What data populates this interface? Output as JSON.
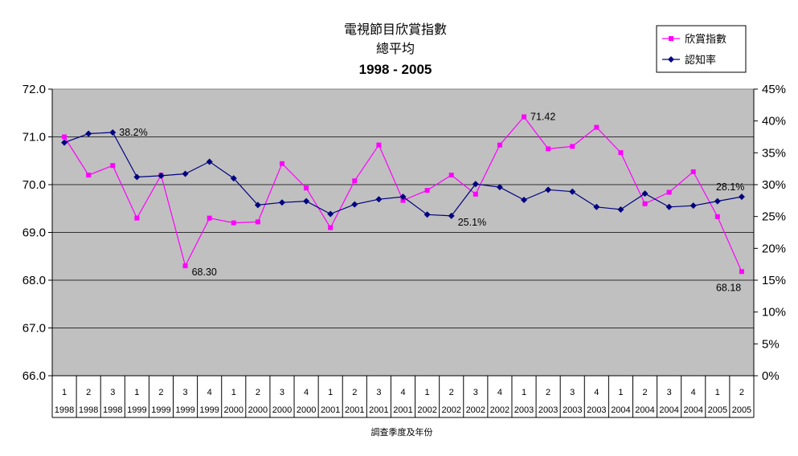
{
  "chart_data": {
    "type": "line",
    "title": [
      "電視節目欣賞指數",
      "總平均",
      "1998 - 2005"
    ],
    "xlabel": "調查季度及年份",
    "categories": [
      {
        "q": "1",
        "y": "1998"
      },
      {
        "q": "2",
        "y": "1998"
      },
      {
        "q": "3",
        "y": "1998"
      },
      {
        "q": "1",
        "y": "1999"
      },
      {
        "q": "2",
        "y": "1999"
      },
      {
        "q": "3",
        "y": "1999"
      },
      {
        "q": "4",
        "y": "1999"
      },
      {
        "q": "1",
        "y": "2000"
      },
      {
        "q": "2",
        "y": "2000"
      },
      {
        "q": "3",
        "y": "2000"
      },
      {
        "q": "4",
        "y": "2000"
      },
      {
        "q": "1",
        "y": "2001"
      },
      {
        "q": "2",
        "y": "2001"
      },
      {
        "q": "3",
        "y": "2001"
      },
      {
        "q": "4",
        "y": "2001"
      },
      {
        "q": "1",
        "y": "2002"
      },
      {
        "q": "2",
        "y": "2002"
      },
      {
        "q": "3",
        "y": "2002"
      },
      {
        "q": "4",
        "y": "2002"
      },
      {
        "q": "1",
        "y": "2003"
      },
      {
        "q": "2",
        "y": "2003"
      },
      {
        "q": "3",
        "y": "2003"
      },
      {
        "q": "4",
        "y": "2003"
      },
      {
        "q": "1",
        "y": "2004"
      },
      {
        "q": "2",
        "y": "2004"
      },
      {
        "q": "3",
        "y": "2004"
      },
      {
        "q": "4",
        "y": "2004"
      },
      {
        "q": "1",
        "y": "2005"
      },
      {
        "q": "2",
        "y": "2005"
      }
    ],
    "left_axis": {
      "min": 66,
      "max": 72,
      "step": 1,
      "ticks": [
        "72.0",
        "71.0",
        "70.0",
        "69.0",
        "68.0",
        "67.0",
        "66.0"
      ]
    },
    "right_axis": {
      "min": 0,
      "max": 45,
      "step": 5,
      "ticks": [
        "45%",
        "40%",
        "35%",
        "30%",
        "25%",
        "20%",
        "15%",
        "10%",
        "5%",
        "0%"
      ]
    },
    "series": [
      {
        "name": "欣賞指數",
        "axis": "left",
        "color": "#FF00FF",
        "marker": "square",
        "values": [
          71.0,
          70.2,
          70.4,
          69.3,
          70.2,
          68.3,
          69.3,
          69.2,
          69.22,
          70.44,
          69.93,
          69.1,
          70.08,
          70.83,
          69.67,
          69.88,
          70.2,
          69.8,
          70.83,
          71.42,
          70.75,
          70.8,
          71.2,
          70.67,
          69.6,
          69.84,
          70.27,
          69.33,
          68.18
        ]
      },
      {
        "name": "認知率",
        "axis": "right",
        "color": "#000080",
        "marker": "diamond",
        "values": [
          36.6,
          38.0,
          38.2,
          31.2,
          31.4,
          31.7,
          33.6,
          31.0,
          26.8,
          27.2,
          27.4,
          25.4,
          26.9,
          27.7,
          28.1,
          25.3,
          25.1,
          30.1,
          29.6,
          27.6,
          29.2,
          28.9,
          26.5,
          26.1,
          28.6,
          26.5,
          26.7,
          27.4,
          28.1
        ]
      }
    ],
    "annotations": [
      {
        "series": 1,
        "index": 2,
        "text": "38.2%"
      },
      {
        "series": 0,
        "index": 5,
        "text": "68.30"
      },
      {
        "series": 1,
        "index": 16,
        "text": "25.1%"
      },
      {
        "series": 0,
        "index": 19,
        "text": "71.42"
      },
      {
        "series": 1,
        "index": 28,
        "text": "28.1%"
      },
      {
        "series": 0,
        "index": 28,
        "text": "68.18"
      }
    ],
    "legend_position": "top-right",
    "plot_background": "#C0C0C0",
    "grid": "horizontal"
  }
}
